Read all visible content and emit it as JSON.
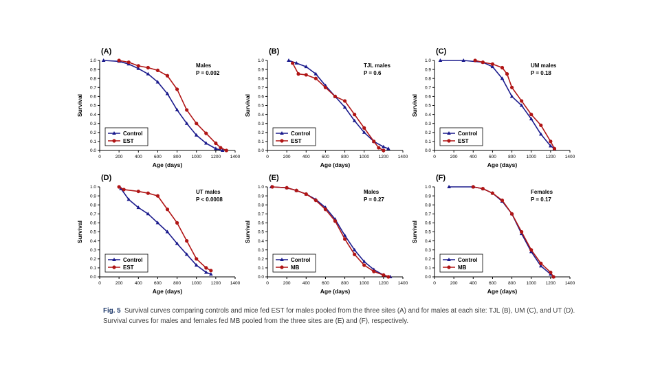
{
  "colors": {
    "control": "#1a1a8c",
    "treatment": "#b01515",
    "axis": "#000000"
  },
  "caption": {
    "label": "Fig. 5",
    "text": "Survival curves comparing controls and mice fed EST for males pooled from the three sites (A) and for males at each site: TJL (B), UM (C), and UT (D). Survival curves for males and females fed MB pooled from the three sites are (E) and (F), respectively."
  },
  "chart_data": [
    {
      "type": "line",
      "panel": "(A)",
      "title_line1": "Males",
      "title_line2": "P = 0.002",
      "xlabel": "Age (days)",
      "ylabel": "Survival",
      "xlim": [
        0,
        1400
      ],
      "ylim": [
        0,
        1
      ],
      "xticks": [
        "0",
        "200",
        "400",
        "600",
        "800",
        "1000",
        "1200",
        "1400"
      ],
      "yticks": [
        "0.0",
        "0.1",
        "0.2",
        "0.3",
        "0.4",
        "0.5",
        "0.6",
        "0.7",
        "0.8",
        "0.9",
        "1.0"
      ],
      "series": [
        {
          "name": "Control",
          "marker": "triangle",
          "x": [
            40,
            200,
            300,
            400,
            500,
            600,
            700,
            800,
            900,
            1000,
            1100,
            1200,
            1270
          ],
          "y": [
            1.0,
            0.99,
            0.96,
            0.91,
            0.85,
            0.76,
            0.63,
            0.45,
            0.3,
            0.17,
            0.08,
            0.02,
            0.0
          ]
        },
        {
          "name": "EST",
          "marker": "circle",
          "x": [
            200,
            300,
            400,
            500,
            600,
            700,
            800,
            900,
            1000,
            1100,
            1200,
            1250,
            1310
          ],
          "y": [
            1.0,
            0.98,
            0.94,
            0.92,
            0.89,
            0.83,
            0.68,
            0.45,
            0.3,
            0.19,
            0.08,
            0.03,
            0.0
          ]
        }
      ]
    },
    {
      "type": "line",
      "panel": "(B)",
      "title_line1": "TJL males",
      "title_line2": "P = 0.6",
      "xlabel": "Age (days)",
      "ylabel": "Survival",
      "xlim": [
        0,
        1400
      ],
      "ylim": [
        0,
        1
      ],
      "xticks": [
        "0",
        "200",
        "400",
        "600",
        "800",
        "1000",
        "1200",
        "1400"
      ],
      "yticks": [
        "0.0",
        "0.1",
        "0.2",
        "0.3",
        "0.4",
        "0.5",
        "0.6",
        "0.7",
        "0.8",
        "0.9",
        "1.0"
      ],
      "series": [
        {
          "name": "Control",
          "marker": "triangle",
          "x": [
            220,
            300,
            400,
            500,
            600,
            700,
            800,
            900,
            1000,
            1100,
            1200,
            1250
          ],
          "y": [
            1.0,
            0.97,
            0.93,
            0.85,
            0.72,
            0.6,
            0.48,
            0.33,
            0.2,
            0.1,
            0.04,
            0.02
          ]
        },
        {
          "name": "EST",
          "marker": "circle",
          "x": [
            260,
            320,
            400,
            500,
            600,
            700,
            800,
            900,
            1000,
            1100,
            1150,
            1200
          ],
          "y": [
            0.97,
            0.85,
            0.84,
            0.8,
            0.7,
            0.6,
            0.55,
            0.4,
            0.25,
            0.1,
            0.03,
            0.0
          ]
        }
      ]
    },
    {
      "type": "line",
      "panel": "(C)",
      "title_line1": "UM males",
      "title_line2": "P = 0.18",
      "xlabel": "Age (days)",
      "ylabel": "Survival",
      "xlim": [
        0,
        1400
      ],
      "ylim": [
        0,
        1
      ],
      "xticks": [
        "0",
        "200",
        "400",
        "600",
        "800",
        "1000",
        "1200",
        "1400"
      ],
      "yticks": [
        "0.0",
        "0.1",
        "0.2",
        "0.3",
        "0.4",
        "0.5",
        "0.6",
        "0.7",
        "0.8",
        "0.9",
        "1.0"
      ],
      "series": [
        {
          "name": "Control",
          "marker": "triangle",
          "x": [
            60,
            300,
            500,
            600,
            700,
            800,
            900,
            1000,
            1100,
            1200,
            1240
          ],
          "y": [
            1.0,
            1.0,
            0.98,
            0.93,
            0.8,
            0.6,
            0.5,
            0.35,
            0.18,
            0.05,
            0.02
          ]
        },
        {
          "name": "EST",
          "marker": "circle",
          "x": [
            420,
            500,
            600,
            700,
            750,
            800,
            900,
            1000,
            1100,
            1200,
            1240
          ],
          "y": [
            1.0,
            0.98,
            0.96,
            0.92,
            0.85,
            0.7,
            0.55,
            0.4,
            0.28,
            0.1,
            0.02
          ]
        }
      ]
    },
    {
      "type": "line",
      "panel": "(D)",
      "title_line1": "UT males",
      "title_line2": "P < 0.0008",
      "xlabel": "Age (days)",
      "ylabel": "Survival",
      "xlim": [
        0,
        1400
      ],
      "ylim": [
        0,
        1
      ],
      "xticks": [
        "0",
        "200",
        "400",
        "600",
        "800",
        "1000",
        "1200",
        "1400"
      ],
      "yticks": [
        "0.0",
        "0.1",
        "0.2",
        "0.3",
        "0.4",
        "0.5",
        "0.6",
        "0.7",
        "0.8",
        "0.9",
        "1.0"
      ],
      "series": [
        {
          "name": "Control",
          "marker": "triangle",
          "x": [
            220,
            300,
            400,
            500,
            600,
            700,
            800,
            900,
            1000,
            1100,
            1150
          ],
          "y": [
            0.98,
            0.86,
            0.77,
            0.7,
            0.6,
            0.5,
            0.37,
            0.25,
            0.13,
            0.05,
            0.03
          ]
        },
        {
          "name": "EST",
          "marker": "circle",
          "x": [
            200,
            250,
            400,
            500,
            600,
            700,
            800,
            900,
            1000,
            1100,
            1150
          ],
          "y": [
            1.0,
            0.97,
            0.95,
            0.93,
            0.9,
            0.75,
            0.6,
            0.4,
            0.2,
            0.1,
            0.07
          ]
        }
      ]
    },
    {
      "type": "line",
      "panel": "(E)",
      "title_line1": "Males",
      "title_line2": "P = 0.27",
      "xlabel": "Age (days)",
      "ylabel": "Survival",
      "xlim": [
        0,
        1400
      ],
      "ylim": [
        0,
        1
      ],
      "xticks": [
        "0",
        "200",
        "400",
        "600",
        "800",
        "1000",
        "1200",
        "1400"
      ],
      "yticks": [
        "0.0",
        "0.1",
        "0.2",
        "0.3",
        "0.4",
        "0.5",
        "0.6",
        "0.7",
        "0.8",
        "0.9",
        "1.0"
      ],
      "series": [
        {
          "name": "Control",
          "marker": "triangle",
          "x": [
            40,
            200,
            300,
            400,
            500,
            600,
            700,
            800,
            900,
            1000,
            1100,
            1200,
            1270
          ],
          "y": [
            1.0,
            0.99,
            0.96,
            0.92,
            0.86,
            0.77,
            0.64,
            0.46,
            0.3,
            0.17,
            0.08,
            0.02,
            0.0
          ]
        },
        {
          "name": "MB",
          "marker": "circle",
          "x": [
            50,
            200,
            300,
            400,
            500,
            600,
            700,
            800,
            900,
            1000,
            1100,
            1200,
            1250
          ],
          "y": [
            1.0,
            0.99,
            0.96,
            0.92,
            0.85,
            0.75,
            0.62,
            0.42,
            0.25,
            0.13,
            0.06,
            0.02,
            0.0
          ]
        }
      ]
    },
    {
      "type": "line",
      "panel": "(F)",
      "title_line1": "Females",
      "title_line2": "P = 0.17",
      "xlabel": "Age (days)",
      "ylabel": "Survival",
      "xlim": [
        0,
        1400
      ],
      "ylim": [
        0,
        1
      ],
      "xticks": [
        "0",
        "200",
        "400",
        "600",
        "800",
        "1000",
        "1200",
        "1400"
      ],
      "yticks": [
        "0.0",
        "0.1",
        "0.2",
        "0.3",
        "0.4",
        "0.5",
        "0.6",
        "0.7",
        "0.8",
        "0.9",
        "1.0"
      ],
      "series": [
        {
          "name": "Control",
          "marker": "triangle",
          "x": [
            150,
            400,
            500,
            600,
            700,
            800,
            900,
            1000,
            1100,
            1200,
            1230
          ],
          "y": [
            1.0,
            1.0,
            0.98,
            0.93,
            0.84,
            0.7,
            0.48,
            0.28,
            0.12,
            0.03,
            0.0
          ]
        },
        {
          "name": "MB",
          "marker": "circle",
          "x": [
            400,
            500,
            600,
            700,
            800,
            900,
            1000,
            1100,
            1200,
            1230
          ],
          "y": [
            1.0,
            0.98,
            0.93,
            0.85,
            0.7,
            0.5,
            0.3,
            0.15,
            0.05,
            0.0
          ]
        }
      ]
    }
  ]
}
